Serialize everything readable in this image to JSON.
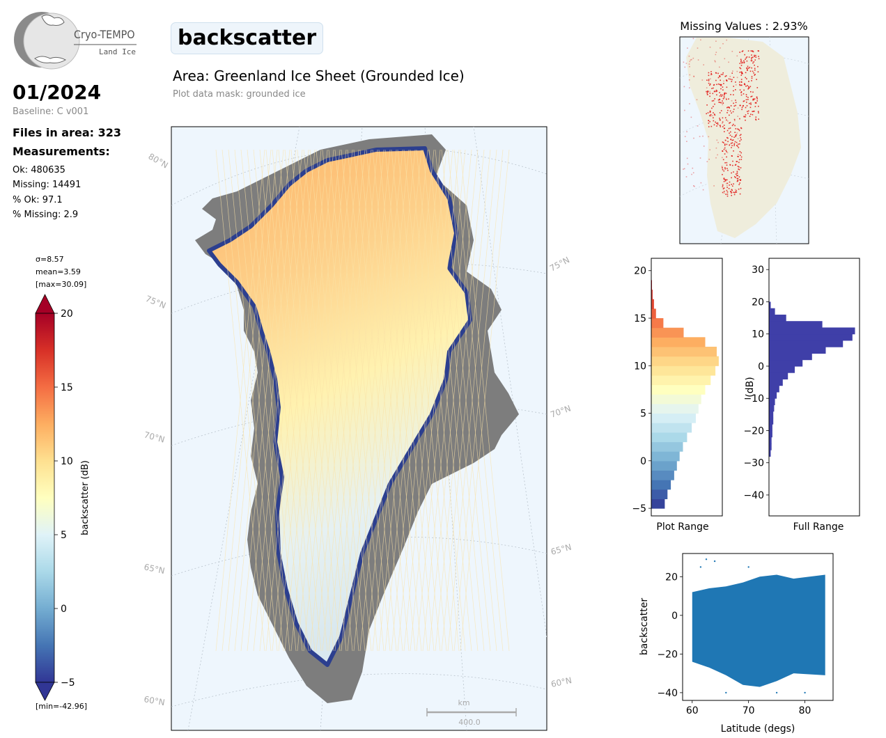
{
  "header": {
    "variable_title": "backscatter",
    "area_title": "Area: Greenland Ice Sheet (Grounded Ice)",
    "mask_note": "Plot data mask: grounded ice"
  },
  "logo": {
    "name": "Cryo-TEMPO",
    "subtitle": "Land Ice"
  },
  "summary": {
    "date": "01/2024",
    "baseline": "Baseline: C v001",
    "files": "Files in area: 323",
    "measurements_heading": "Measurements:",
    "ok": "Ok: 480635",
    "missing": "Missing: 14491",
    "pct_ok": "% Ok: 97.1",
    "pct_missing": "% Missing: 2.9"
  },
  "colorbar": {
    "sigma": "σ=8.57",
    "mean": "mean=3.59",
    "max": "[max=30.09]",
    "min": "[min=-42.96]",
    "label": "backscatter (dB)",
    "ticks": [
      "20",
      "15",
      "10",
      "5",
      "0",
      "−5"
    ],
    "range": [
      -5,
      20
    ],
    "colors": [
      "#313695",
      "#4575b4",
      "#74add1",
      "#abd9e9",
      "#e0f3f8",
      "#ffffbf",
      "#fee090",
      "#fdae61",
      "#f46d43",
      "#d73027",
      "#a50026"
    ]
  },
  "map": {
    "lat_labels_left": [
      "80°N",
      "75°N",
      "70°N",
      "65°N",
      "60°N"
    ],
    "lat_labels_right": [
      "75°N",
      "70°N",
      "65°N",
      "60°N"
    ],
    "scalebar_unit": "km",
    "scalebar_value": "400.0",
    "ocean_color": "#eef6fd",
    "land_color": "#c8c8c8"
  },
  "chart_data": [
    {
      "type": "histogram",
      "name": "plot-range-histogram",
      "xlabel": "Plot Range",
      "orientation": "horizontal",
      "ylim": [
        -5.8,
        21.3
      ],
      "yticks": [
        -5,
        0,
        5,
        10,
        15,
        20
      ],
      "bins_center": [
        -4.5,
        -3.5,
        -2.5,
        -1.5,
        -0.5,
        0.5,
        1.5,
        2.5,
        3.5,
        4.5,
        5.5,
        6.5,
        7.5,
        8.5,
        9.5,
        10.5,
        11.5,
        12.5,
        13.5,
        14.5,
        15.5,
        16.5,
        17.5,
        18.5
      ],
      "counts_relative": [
        0.2,
        0.24,
        0.29,
        0.34,
        0.38,
        0.42,
        0.47,
        0.53,
        0.6,
        0.66,
        0.7,
        0.74,
        0.8,
        0.88,
        0.95,
        1.0,
        0.97,
        0.8,
        0.48,
        0.18,
        0.07,
        0.04,
        0.02,
        0.01
      ],
      "colormap": "RdYlBu_r"
    },
    {
      "type": "histogram",
      "name": "full-range-histogram",
      "xlabel": "Full Range",
      "ylabel": "(dB)",
      "orientation": "horizontal",
      "ylim": [
        -46.5,
        33.5
      ],
      "yticks": [
        -40,
        -30,
        -20,
        -10,
        0,
        10,
        20,
        30
      ],
      "bins_center": [
        -27,
        -25,
        -23,
        -21,
        -19,
        -17,
        -15,
        -13,
        -11,
        -9,
        -7,
        -5,
        -3,
        -1,
        1,
        3,
        5,
        7,
        9,
        11,
        13,
        15,
        17,
        19
      ],
      "counts_relative": [
        0.02,
        0.03,
        0.03,
        0.04,
        0.04,
        0.05,
        0.05,
        0.06,
        0.07,
        0.09,
        0.12,
        0.16,
        0.22,
        0.3,
        0.39,
        0.5,
        0.66,
        0.86,
        0.97,
        1.0,
        0.62,
        0.2,
        0.07,
        0.02
      ],
      "color": "#3f3fa8"
    },
    {
      "type": "scatter",
      "name": "latitude-scatter",
      "xlabel": "Latitude (degs)",
      "ylabel": "backscatter",
      "xlim": [
        58.3,
        85
      ],
      "ylim": [
        -44,
        32
      ],
      "xticks": [
        60,
        70,
        80
      ],
      "yticks": [
        -40,
        -20,
        0,
        20
      ],
      "x_range": [
        60,
        83.6
      ],
      "band_upper_db": [
        12,
        14,
        15,
        17,
        20,
        21,
        19,
        21
      ],
      "band_lower_db": [
        -24,
        -27,
        -31,
        -36,
        -37,
        -34,
        -30,
        -31
      ],
      "band_x": [
        60,
        63,
        66,
        69,
        72,
        75,
        78,
        83.6
      ],
      "outliers": [
        [
          61.5,
          25
        ],
        [
          62.5,
          29
        ],
        [
          64,
          28
        ],
        [
          70,
          25
        ],
        [
          75,
          -40
        ],
        [
          80,
          -40
        ],
        [
          66,
          -40
        ]
      ],
      "color": "#1f77b4"
    },
    {
      "type": "map",
      "name": "missing-values-map",
      "title": "Missing Values : 2.93%",
      "missing_color": "#e00000"
    }
  ]
}
